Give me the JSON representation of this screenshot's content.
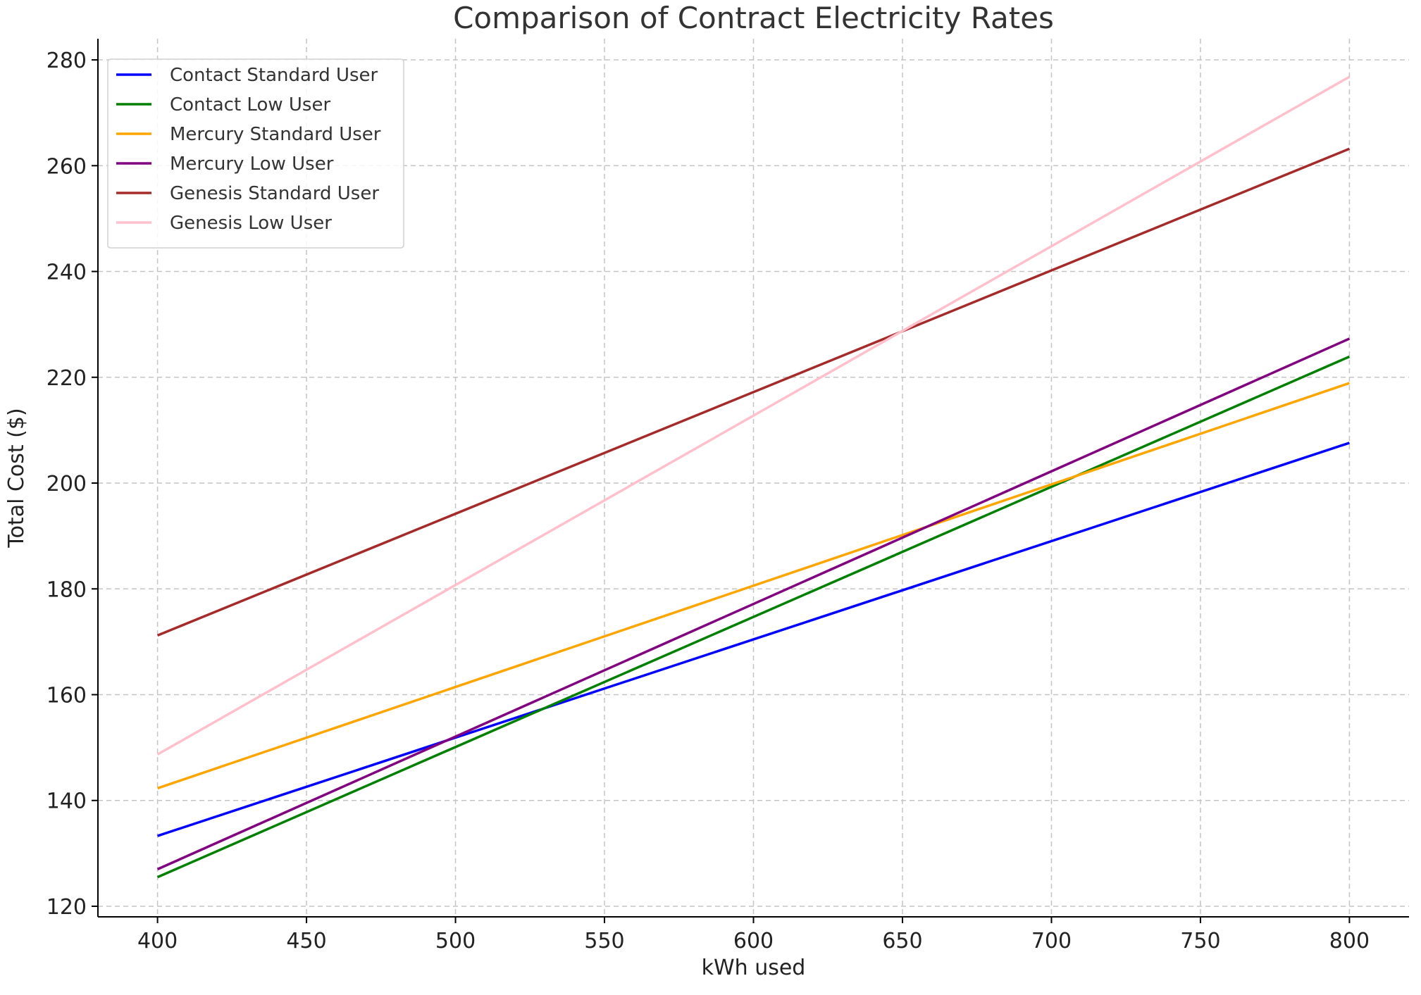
{
  "chart_data": {
    "type": "line",
    "title": "Comparison of Contract Electricity Rates",
    "xlabel": "kWh used",
    "ylabel": "Total Cost ($)",
    "xlim": [
      380,
      820
    ],
    "ylim": [
      118,
      284
    ],
    "x_ticks": [
      400,
      450,
      500,
      550,
      600,
      650,
      700,
      750,
      800
    ],
    "y_ticks": [
      120,
      140,
      160,
      180,
      200,
      220,
      240,
      260,
      280
    ],
    "x_tick_labels": [
      "400",
      "450",
      "500",
      "550",
      "600",
      "650",
      "700",
      "750",
      "800"
    ],
    "y_tick_labels": [
      "120",
      "140",
      "160",
      "180",
      "200",
      "220",
      "240",
      "260",
      "280"
    ],
    "grid": true,
    "legend_position": "top-left",
    "x": [
      400,
      800
    ],
    "series": [
      {
        "name": "Contact Standard User",
        "color": "#0000ff",
        "values": [
          133.3,
          207.6
        ]
      },
      {
        "name": "Contact Low User",
        "color": "#008000",
        "values": [
          125.5,
          223.9
        ]
      },
      {
        "name": "Mercury Standard User",
        "color": "#ffa500",
        "values": [
          142.3,
          218.9
        ]
      },
      {
        "name": "Mercury Low User",
        "color": "#800080",
        "values": [
          127.0,
          227.3
        ]
      },
      {
        "name": "Genesis Standard User",
        "color": "#a52a2a",
        "values": [
          171.2,
          263.2
        ]
      },
      {
        "name": "Genesis Low User",
        "color": "#ffc0cb",
        "values": [
          148.7,
          276.8
        ]
      }
    ]
  }
}
